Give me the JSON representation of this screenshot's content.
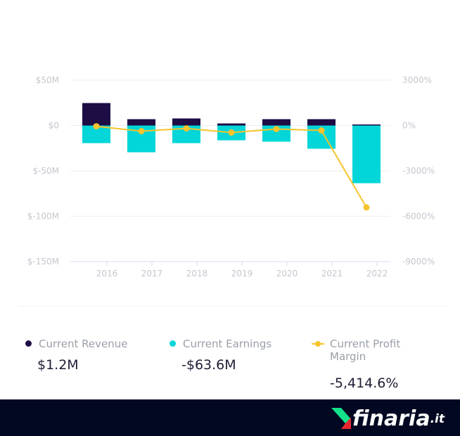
{
  "chart_data": {
    "type": "bar+line",
    "categories": [
      "2016",
      "2017",
      "2018",
      "2019",
      "2020",
      "2021",
      "2022"
    ],
    "series": [
      {
        "name": "Current Revenue",
        "type": "bar",
        "unit": "$M",
        "color": "#1e0c45",
        "values": [
          24.8,
          7.0,
          7.8,
          2.3,
          7.0,
          7.0,
          1.2
        ]
      },
      {
        "name": "Current Earnings",
        "type": "bar",
        "unit": "$M",
        "color": "#02d6d8",
        "values": [
          -19.4,
          -29.5,
          -19.4,
          -16.3,
          -17.8,
          -25.6,
          -63.6
        ]
      },
      {
        "name": "Current Profit Margin",
        "type": "line",
        "axis": "right",
        "unit": "%",
        "color": "#f6c42c",
        "values": [
          -50,
          -370,
          -190,
          -465,
          -230,
          -325,
          -5414.6
        ]
      }
    ],
    "left_axis": {
      "ticks": [
        "$50M",
        "$0",
        "$-50M",
        "$-100M",
        "$-150M"
      ],
      "range": [
        -150,
        50
      ]
    },
    "right_axis": {
      "ticks": [
        "3000%",
        "0%",
        "-3000%",
        "-6000%",
        "-9000%"
      ],
      "range": [
        -9000,
        3000
      ]
    },
    "grid": true
  },
  "legend": [
    {
      "label": "Current Revenue",
      "value": "$1.2M",
      "color": "#1e0c45"
    },
    {
      "label": "Current Earnings",
      "value": "-$63.6M",
      "color": "#02d6d8"
    },
    {
      "label": "Current Profit Margin",
      "value": "-5,414.6%",
      "color": "#f6c42c"
    }
  ],
  "footer": {
    "logo": "finaria",
    "logo_suffix": ".it"
  }
}
